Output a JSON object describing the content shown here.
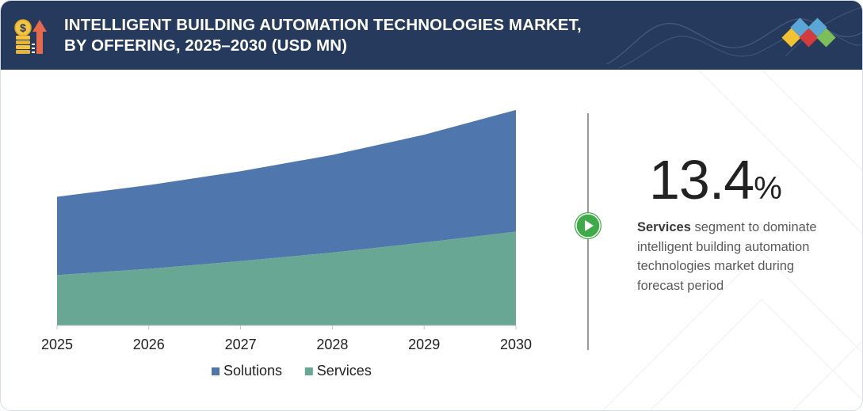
{
  "header": {
    "title_line1": "INTELLIGENT BUILDING AUTOMATION TECHNOLOGIES MARKET,",
    "title_line2": "BY OFFERING, 2025–2030 (USD MN)",
    "colors": {
      "background": "#253a5c",
      "text": "#ffffff"
    },
    "icon": "money-growth-icon",
    "decoration": "brand-diamonds-icon"
  },
  "chart_data": {
    "type": "area",
    "stacked": true,
    "x": [
      "2025",
      "2026",
      "2027",
      "2028",
      "2029",
      "2030"
    ],
    "series": [
      {
        "name": "Services",
        "color": "#68a794",
        "values": [
          65,
          73,
          83,
          94,
          107,
          121
        ]
      },
      {
        "name": "Solutions",
        "color": "#5077ad",
        "values": [
          101,
          108,
          116,
          126,
          139,
          157
        ]
      }
    ],
    "ylim": [
      0,
      285
    ],
    "grid": false,
    "legend_position": "bottom-center"
  },
  "highlight": {
    "value": "13.4",
    "unit": "%",
    "bold": "Services",
    "text": " segment to dominate intelligent building automation technologies market during forecast period",
    "play_icon": "play-icon",
    "accent": "#3faa48"
  }
}
